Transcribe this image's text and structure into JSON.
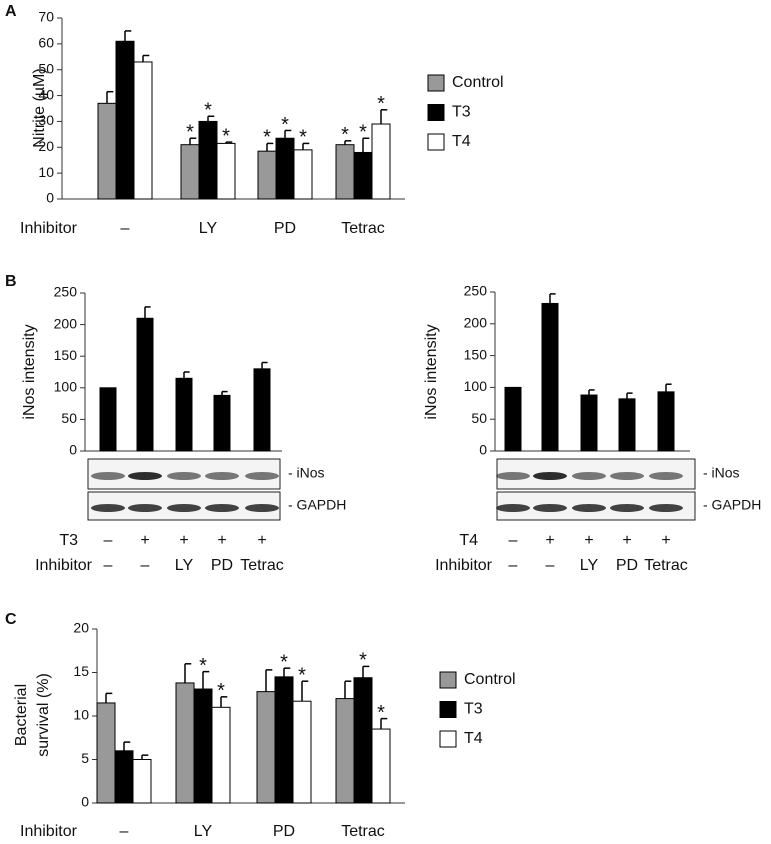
{
  "chart_data": [
    {
      "type": "grouped-bar",
      "panel": "A",
      "y_label": [
        "Nitrite (µM)"
      ],
      "category_label": "Inhibitor",
      "categories": [
        "–",
        "LY",
        "PD",
        "Tetrac"
      ],
      "ylim": [
        0,
        70
      ],
      "yticks": [
        0,
        10,
        20,
        30,
        40,
        50,
        60,
        70
      ],
      "series": [
        {
          "name": "Control",
          "color": "#999999",
          "values": [
            37,
            21,
            18.5,
            21
          ],
          "errors": [
            4.5,
            2.5,
            3,
            1.5
          ],
          "labels": [
            null,
            "*",
            "*",
            "*"
          ]
        },
        {
          "name": "T3",
          "color": "#000000",
          "values": [
            61,
            30,
            23.5,
            18
          ],
          "errors": [
            4,
            2,
            3,
            5.5
          ],
          "labels": [
            null,
            "*",
            "*",
            "*"
          ]
        },
        {
          "name": "T4",
          "color": "#ffffff",
          "values": [
            53,
            21.5,
            19,
            29
          ],
          "errors": [
            2.5,
            0.5,
            2.5,
            5.5
          ],
          "labels": [
            null,
            "*",
            "*",
            "*"
          ]
        }
      ]
    },
    {
      "type": "bar",
      "panel": "B",
      "y_label": [
        "iNos intensity"
      ],
      "category_label": "Inhibitor",
      "treatment_label": "T3",
      "treatment": [
        "–",
        "+",
        "+",
        "+",
        "+"
      ],
      "categories": [
        "–",
        "–",
        "LY",
        "PD",
        "Tetrac"
      ],
      "ylim": [
        0,
        250
      ],
      "yticks": [
        0,
        50,
        100,
        150,
        200,
        250
      ],
      "color": "#000000",
      "values": [
        100,
        210,
        115,
        88,
        130
      ],
      "errors": [
        0,
        18,
        10,
        6,
        10
      ],
      "blot_labels": [
        "- iNos",
        "- GAPDH"
      ]
    },
    {
      "type": "bar",
      "category_label": "Inhibitor",
      "y_label": [
        "iNos intensity"
      ],
      "treatment_label": "T4",
      "treatment": [
        "–",
        "+",
        "+",
        "+",
        "+"
      ],
      "categories": [
        "–",
        "–",
        "LY",
        "PD",
        "Tetrac"
      ],
      "ylim": [
        0,
        250
      ],
      "yticks": [
        0,
        50,
        100,
        150,
        200,
        250
      ],
      "color": "#000000",
      "values": [
        100,
        232,
        88,
        82,
        93
      ],
      "errors": [
        0,
        15,
        8,
        9,
        12
      ],
      "blot_labels": [
        "- iNos",
        "- GAPDH"
      ]
    },
    {
      "type": "grouped-bar",
      "panel": "C",
      "y_label": [
        "Bacterial",
        "survival (%)"
      ],
      "category_label": "Inhibitor",
      "categories": [
        "–",
        "LY",
        "PD",
        "Tetrac"
      ],
      "ylim": [
        0,
        20
      ],
      "yticks": [
        0,
        5,
        10,
        15,
        20
      ],
      "series": [
        {
          "name": "Control",
          "color": "#999999",
          "values": [
            11.5,
            13.8,
            12.8,
            12
          ],
          "errors": [
            1.1,
            2.2,
            2.5,
            2
          ],
          "labels": [
            null,
            null,
            null,
            null
          ]
        },
        {
          "name": "T3",
          "color": "#000000",
          "values": [
            6,
            13.1,
            14.5,
            14.4
          ],
          "errors": [
            1,
            2,
            1,
            1.3
          ],
          "labels": [
            null,
            "*",
            "*",
            "*"
          ]
        },
        {
          "name": "T4",
          "color": "#ffffff",
          "values": [
            5,
            11,
            11.7,
            8.5
          ],
          "errors": [
            0.5,
            1.2,
            2.3,
            1.2
          ],
          "labels": [
            null,
            "*",
            "*",
            "*"
          ]
        }
      ]
    }
  ]
}
